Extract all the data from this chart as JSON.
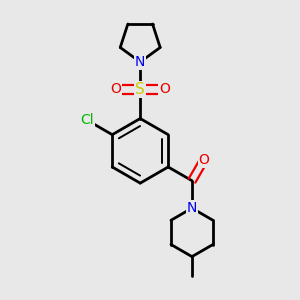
{
  "background_color": "#e8e8e8",
  "bond_color": "#000000",
  "bond_width": 2.0,
  "figsize": [
    3.0,
    3.0
  ],
  "dpi": 100,
  "atom_colors": {
    "N": "#0000ee",
    "O": "#ee0000",
    "S": "#cccc00",
    "Cl": "#00bb00",
    "C": "#000000"
  },
  "label_fontsize": 10,
  "s_fontsize": 11
}
